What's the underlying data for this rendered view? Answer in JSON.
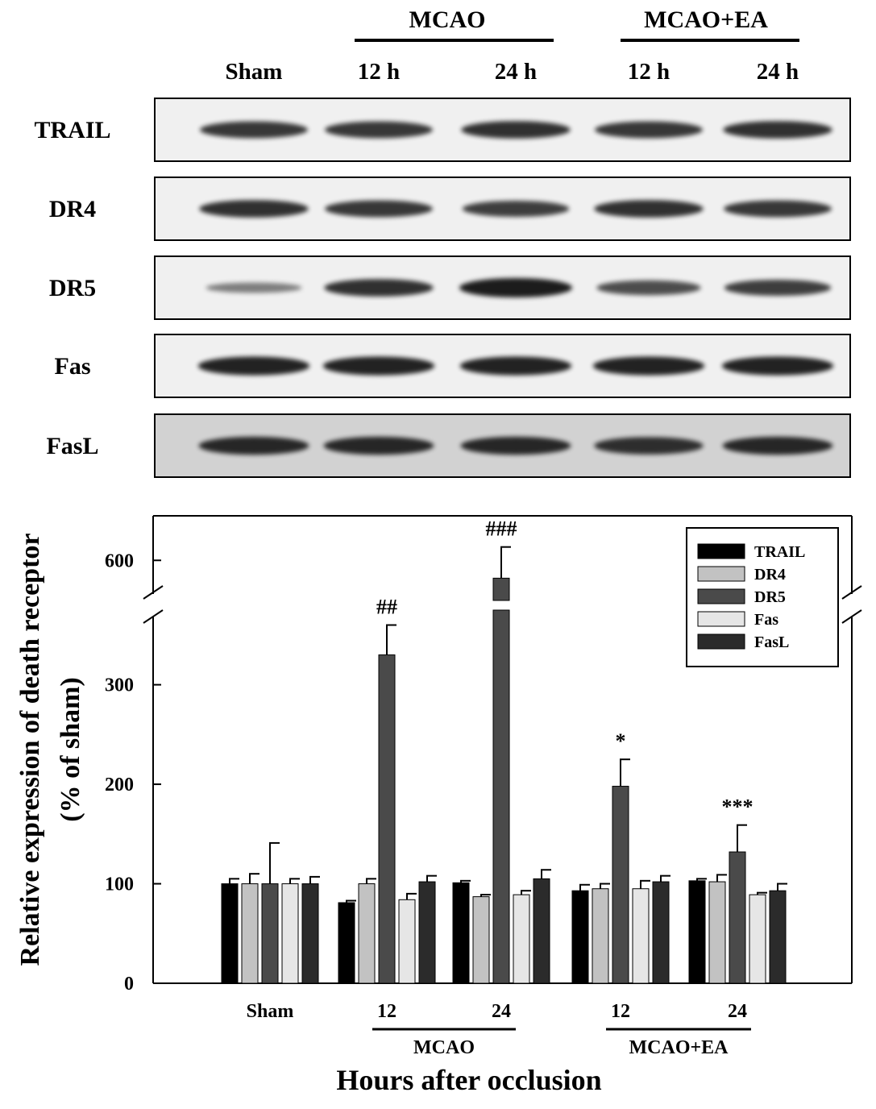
{
  "blot": {
    "groups": [
      {
        "label": "MCAO"
      },
      {
        "label": "MCAO+EA"
      }
    ],
    "lanes": [
      "Sham",
      "12 h",
      "24 h",
      "12 h",
      "24 h"
    ],
    "rows": [
      {
        "label": "TRAIL",
        "intensity": [
          0.8,
          0.8,
          0.85,
          0.8,
          0.85
        ]
      },
      {
        "label": "DR4",
        "intensity": [
          0.85,
          0.8,
          0.75,
          0.85,
          0.8
        ]
      },
      {
        "label": "DR5",
        "intensity": [
          0.3,
          0.85,
          1.0,
          0.65,
          0.75
        ]
      },
      {
        "label": "Fas",
        "intensity": [
          0.95,
          0.95,
          0.95,
          0.95,
          0.95
        ]
      },
      {
        "label": "FasL",
        "intensity": [
          0.9,
          0.9,
          0.9,
          0.85,
          0.9
        ]
      }
    ],
    "colors": {
      "light": "#f0f0f0",
      "dark": "#d2d2d2",
      "band": "#1c1c1c"
    }
  },
  "chart_data": {
    "type": "bar",
    "ylabel_line1": "Relative expression of death receptor",
    "ylabel_line2": "(% of sham)",
    "xlabel": "Hours after occlusion",
    "yticks_lower": [
      0,
      100,
      200,
      300
    ],
    "yticks_upper": [
      600
    ],
    "ylim_lower": [
      0,
      375
    ],
    "ylim_upper": [
      555,
      650
    ],
    "axis_break": true,
    "categories": [
      "Sham",
      "12",
      "24",
      "12",
      "24"
    ],
    "groups": [
      {
        "label": "MCAO",
        "categories": [
          1,
          2
        ]
      },
      {
        "label": "MCAO+EA",
        "categories": [
          3,
          4
        ]
      }
    ],
    "series": [
      {
        "name": "TRAIL",
        "color": "#000000",
        "values": [
          100,
          81,
          101,
          93,
          103
        ],
        "errors": [
          5,
          2,
          2,
          6,
          2
        ]
      },
      {
        "name": "DR4",
        "color": "#c2c2c2",
        "values": [
          100,
          100,
          87,
          95,
          102
        ],
        "errors": [
          10,
          5,
          2,
          5,
          7
        ]
      },
      {
        "name": "DR5",
        "color": "#4a4a4a",
        "values": [
          100,
          330,
          580,
          198,
          132
        ],
        "errors": [
          41,
          30,
          35,
          27,
          27
        ]
      },
      {
        "name": "Fas",
        "color": "#e6e6e6",
        "values": [
          100,
          84,
          89,
          95,
          89
        ],
        "errors": [
          5,
          6,
          4,
          8,
          2
        ]
      },
      {
        "name": "FasL",
        "color": "#2b2b2b",
        "values": [
          100,
          102,
          105,
          102,
          93
        ],
        "errors": [
          7,
          6,
          9,
          6,
          7
        ]
      }
    ],
    "annotations": [
      {
        "text": "##",
        "category": 1,
        "series": "DR5"
      },
      {
        "text": "###",
        "category": 2,
        "series": "DR5"
      },
      {
        "text": "*",
        "category": 3,
        "series": "DR5"
      },
      {
        "text": "***",
        "category": 4,
        "series": "DR5"
      }
    ],
    "legend": {
      "position": "top-right"
    }
  }
}
